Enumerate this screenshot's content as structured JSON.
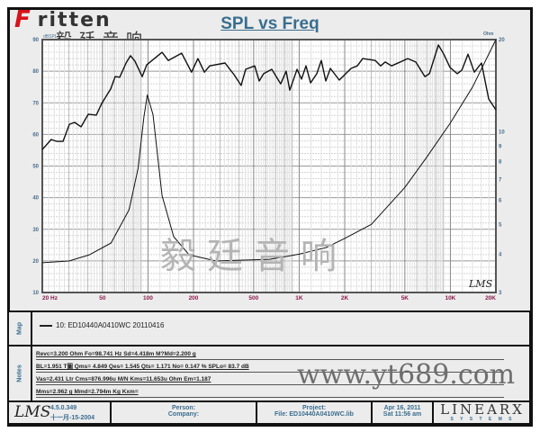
{
  "logo": {
    "brand": "Fritten",
    "chinese": "毅廷音响"
  },
  "title": "SPL vs Freq",
  "watermarks": {
    "chinese": "毅廷音响",
    "url": "www.yt689.com"
  },
  "colors": {
    "title": "#3a6e8f",
    "left_ticks": "#4a6f8f",
    "x_ticks": "#8b1a4a",
    "curve": "#111111"
  },
  "chart_data": {
    "type": "line",
    "title": "SPL vs Freq",
    "x_scale": "log",
    "xlim": [
      20,
      20000
    ],
    "x_ticks": [
      {
        "v": 20,
        "l": "20  Hz"
      },
      {
        "v": 50,
        "l": "50"
      },
      {
        "v": 100,
        "l": "100"
      },
      {
        "v": 200,
        "l": "200"
      },
      {
        "v": 500,
        "l": "500"
      },
      {
        "v": 1000,
        "l": "1K"
      },
      {
        "v": 2000,
        "l": "2K"
      },
      {
        "v": 5000,
        "l": "5K"
      },
      {
        "v": 10000,
        "l": "10K"
      },
      {
        "v": 20000,
        "l": "20K"
      }
    ],
    "y_left": {
      "unit": "dBSPL",
      "range": [
        10,
        90
      ],
      "ticks": [
        10,
        20,
        30,
        40,
        50,
        60,
        70,
        80,
        90
      ]
    },
    "y_right": {
      "unit": "Ohm",
      "scale": "log",
      "range": [
        3,
        20
      ],
      "ticks": [
        3,
        4,
        5,
        6,
        7,
        8,
        9,
        10,
        20
      ]
    },
    "grid": true,
    "series": [
      {
        "axis": "left",
        "points": [
          [
            20,
            55.2
          ],
          [
            22.9,
            58.4
          ],
          [
            24.9,
            57.8
          ],
          [
            27.4,
            57.8
          ],
          [
            30.2,
            63.2
          ],
          [
            32.7,
            63.8
          ],
          [
            36.1,
            62.4
          ],
          [
            40.3,
            66.4
          ],
          [
            45.5,
            66.1
          ],
          [
            49.4,
            69.8
          ],
          [
            56.7,
            74.4
          ],
          [
            60.7,
            78.3
          ],
          [
            65,
            78.1
          ],
          [
            71.6,
            82.6
          ],
          [
            76.6,
            84.9
          ],
          [
            82,
            83.2
          ],
          [
            91.6,
            78.3
          ],
          [
            98,
            82
          ],
          [
            124,
            86
          ],
          [
            136,
            83.4
          ],
          [
            167,
            85.7
          ],
          [
            194,
            79.7
          ],
          [
            214,
            84
          ],
          [
            236,
            79.7
          ],
          [
            256,
            81.7
          ],
          [
            323,
            82.6
          ],
          [
            371,
            78.9
          ],
          [
            413,
            75.5
          ],
          [
            443,
            80.6
          ],
          [
            508,
            81.7
          ],
          [
            544,
            76.9
          ],
          [
            582,
            79.2
          ],
          [
            659,
            80.6
          ],
          [
            755,
            76
          ],
          [
            820,
            80
          ],
          [
            867,
            74
          ],
          [
            968,
            80.6
          ],
          [
            1036,
            77.5
          ],
          [
            1110,
            81.7
          ],
          [
            1189,
            76.3
          ],
          [
            1307,
            79.2
          ],
          [
            1400,
            83.4
          ],
          [
            1500,
            76.9
          ],
          [
            1608,
            80.9
          ],
          [
            1841,
            77.2
          ],
          [
            2203,
            80.9
          ],
          [
            2423,
            81.7
          ],
          [
            2630,
            84
          ],
          [
            3187,
            83.4
          ],
          [
            3460,
            81.7
          ],
          [
            3707,
            82.9
          ],
          [
            4083,
            81.7
          ],
          [
            5227,
            84
          ],
          [
            5906,
            82.9
          ],
          [
            6780,
            78.3
          ],
          [
            7265,
            79.2
          ],
          [
            8325,
            88.3
          ],
          [
            9040,
            85.4
          ],
          [
            9940,
            81.2
          ],
          [
            11090,
            79.2
          ],
          [
            11890,
            80.3
          ],
          [
            13070,
            85.4
          ],
          [
            14390,
            79.7
          ],
          [
            16070,
            82.6
          ],
          [
            17920,
            71.2
          ],
          [
            20000,
            67.8
          ]
        ]
      },
      {
        "axis": "right",
        "points": [
          [
            20,
            3.75
          ],
          [
            30,
            3.8
          ],
          [
            41,
            3.98
          ],
          [
            57,
            4.35
          ],
          [
            75,
            5.58
          ],
          [
            86,
            7.6
          ],
          [
            94,
            11.2
          ],
          [
            99,
            13.2
          ],
          [
            108,
            11.4
          ],
          [
            124,
            6.2
          ],
          [
            148,
            4.56
          ],
          [
            187,
            3.98
          ],
          [
            282,
            3.8
          ],
          [
            640,
            3.85
          ],
          [
            1000,
            4.0
          ],
          [
            1500,
            4.2
          ],
          [
            2000,
            4.5
          ],
          [
            3000,
            5.0
          ],
          [
            5000,
            6.6
          ],
          [
            7000,
            8.3
          ],
          [
            10000,
            10.7
          ],
          [
            14000,
            14
          ],
          [
            20000,
            20
          ]
        ]
      }
    ]
  },
  "plot_logo": "LMS",
  "map": {
    "label": "Map",
    "entry": "10: ED10440A0410WC  20110416"
  },
  "notes": {
    "label": "Notes",
    "lines": [
      "Revc=3.200 Ohm  Fo=98.741 Hz  Sd=4.418m M?Md=2.200 g",
      "BL=1.951 T圖  Qms= 4.849  Qes= 1.545  Qts= 1.171  No= 0.147 %  SPLo= 83.7 dB",
      "Vas=2.431 Ltr  Cms=876.996u M/N  Kms=11.653u Ohm  Em=1.187",
      "Mms=2.962 g  Mmd=2.794m Kg  Kxm="
    ]
  },
  "footer": {
    "logo": "LMS",
    "version": "4.5.0.349",
    "build_date": "十一月-15-2004",
    "person": "Person:",
    "company": "Company:",
    "project": "Project:",
    "file": "File: ED10440A0410WC.lib",
    "date": "Apr 16, 2011",
    "time": "Sat 11:56 am",
    "brand": "LINEARX",
    "brand_sub": "S Y S T E M S"
  }
}
